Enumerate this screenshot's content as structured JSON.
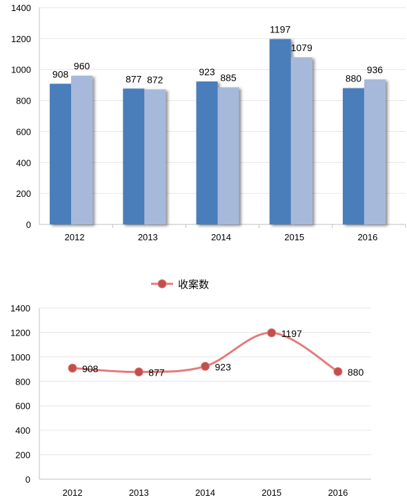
{
  "chart_data": [
    {
      "type": "bar",
      "categories": [
        "2012",
        "2013",
        "2014",
        "2015",
        "2016"
      ],
      "series": [
        {
          "values": [
            908,
            877,
            923,
            1197,
            880
          ],
          "color": "#4a7ebb"
        },
        {
          "values": [
            960,
            872,
            885,
            1079,
            936
          ],
          "color": "#a7b9da"
        }
      ],
      "ylim": [
        0,
        1400
      ],
      "yticks": [
        "0",
        "200",
        "400",
        "600",
        "800",
        "1000",
        "1200",
        "1400"
      ],
      "grid": true,
      "data_labels": true
    },
    {
      "type": "line",
      "categories": [
        "2012",
        "2013",
        "2014",
        "2015",
        "2016"
      ],
      "series": [
        {
          "name": "收案数",
          "values": [
            908,
            877,
            923,
            1197,
            880
          ],
          "color": "#e57a7a",
          "marker_color": "#c0504d"
        }
      ],
      "ylim": [
        0,
        1400
      ],
      "yticks": [
        "0",
        "200",
        "400",
        "600",
        "800",
        "1000",
        "1200",
        "1400"
      ],
      "legend_position": "top",
      "grid": true,
      "smooth": true,
      "data_labels": true
    }
  ]
}
